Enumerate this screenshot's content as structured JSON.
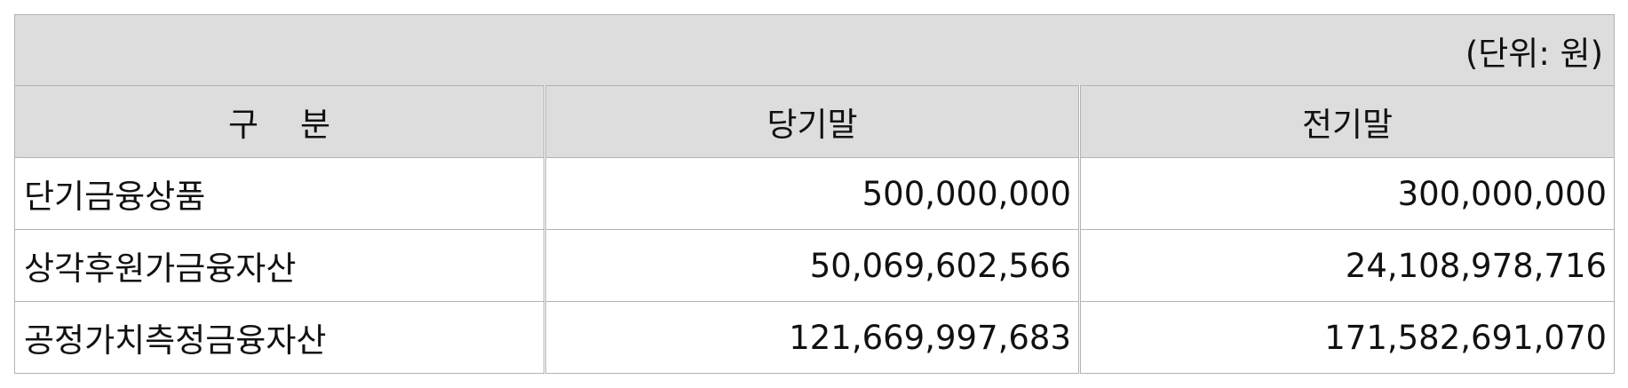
{
  "unit_note": "(단위: 원)",
  "headers": [
    "구    분",
    "당기말",
    "전기말"
  ],
  "rows": [
    {
      "label": "단기금융상품",
      "current": "500,000,000",
      "previous": "300,000,000"
    },
    {
      "label": "상각후원가금융자산",
      "current": "50,069,602,566",
      "previous": "24,108,978,716"
    },
    {
      "label": "공정가치측정금융자산",
      "current": "121,669,997,683",
      "previous": "171,582,691,070"
    }
  ]
}
